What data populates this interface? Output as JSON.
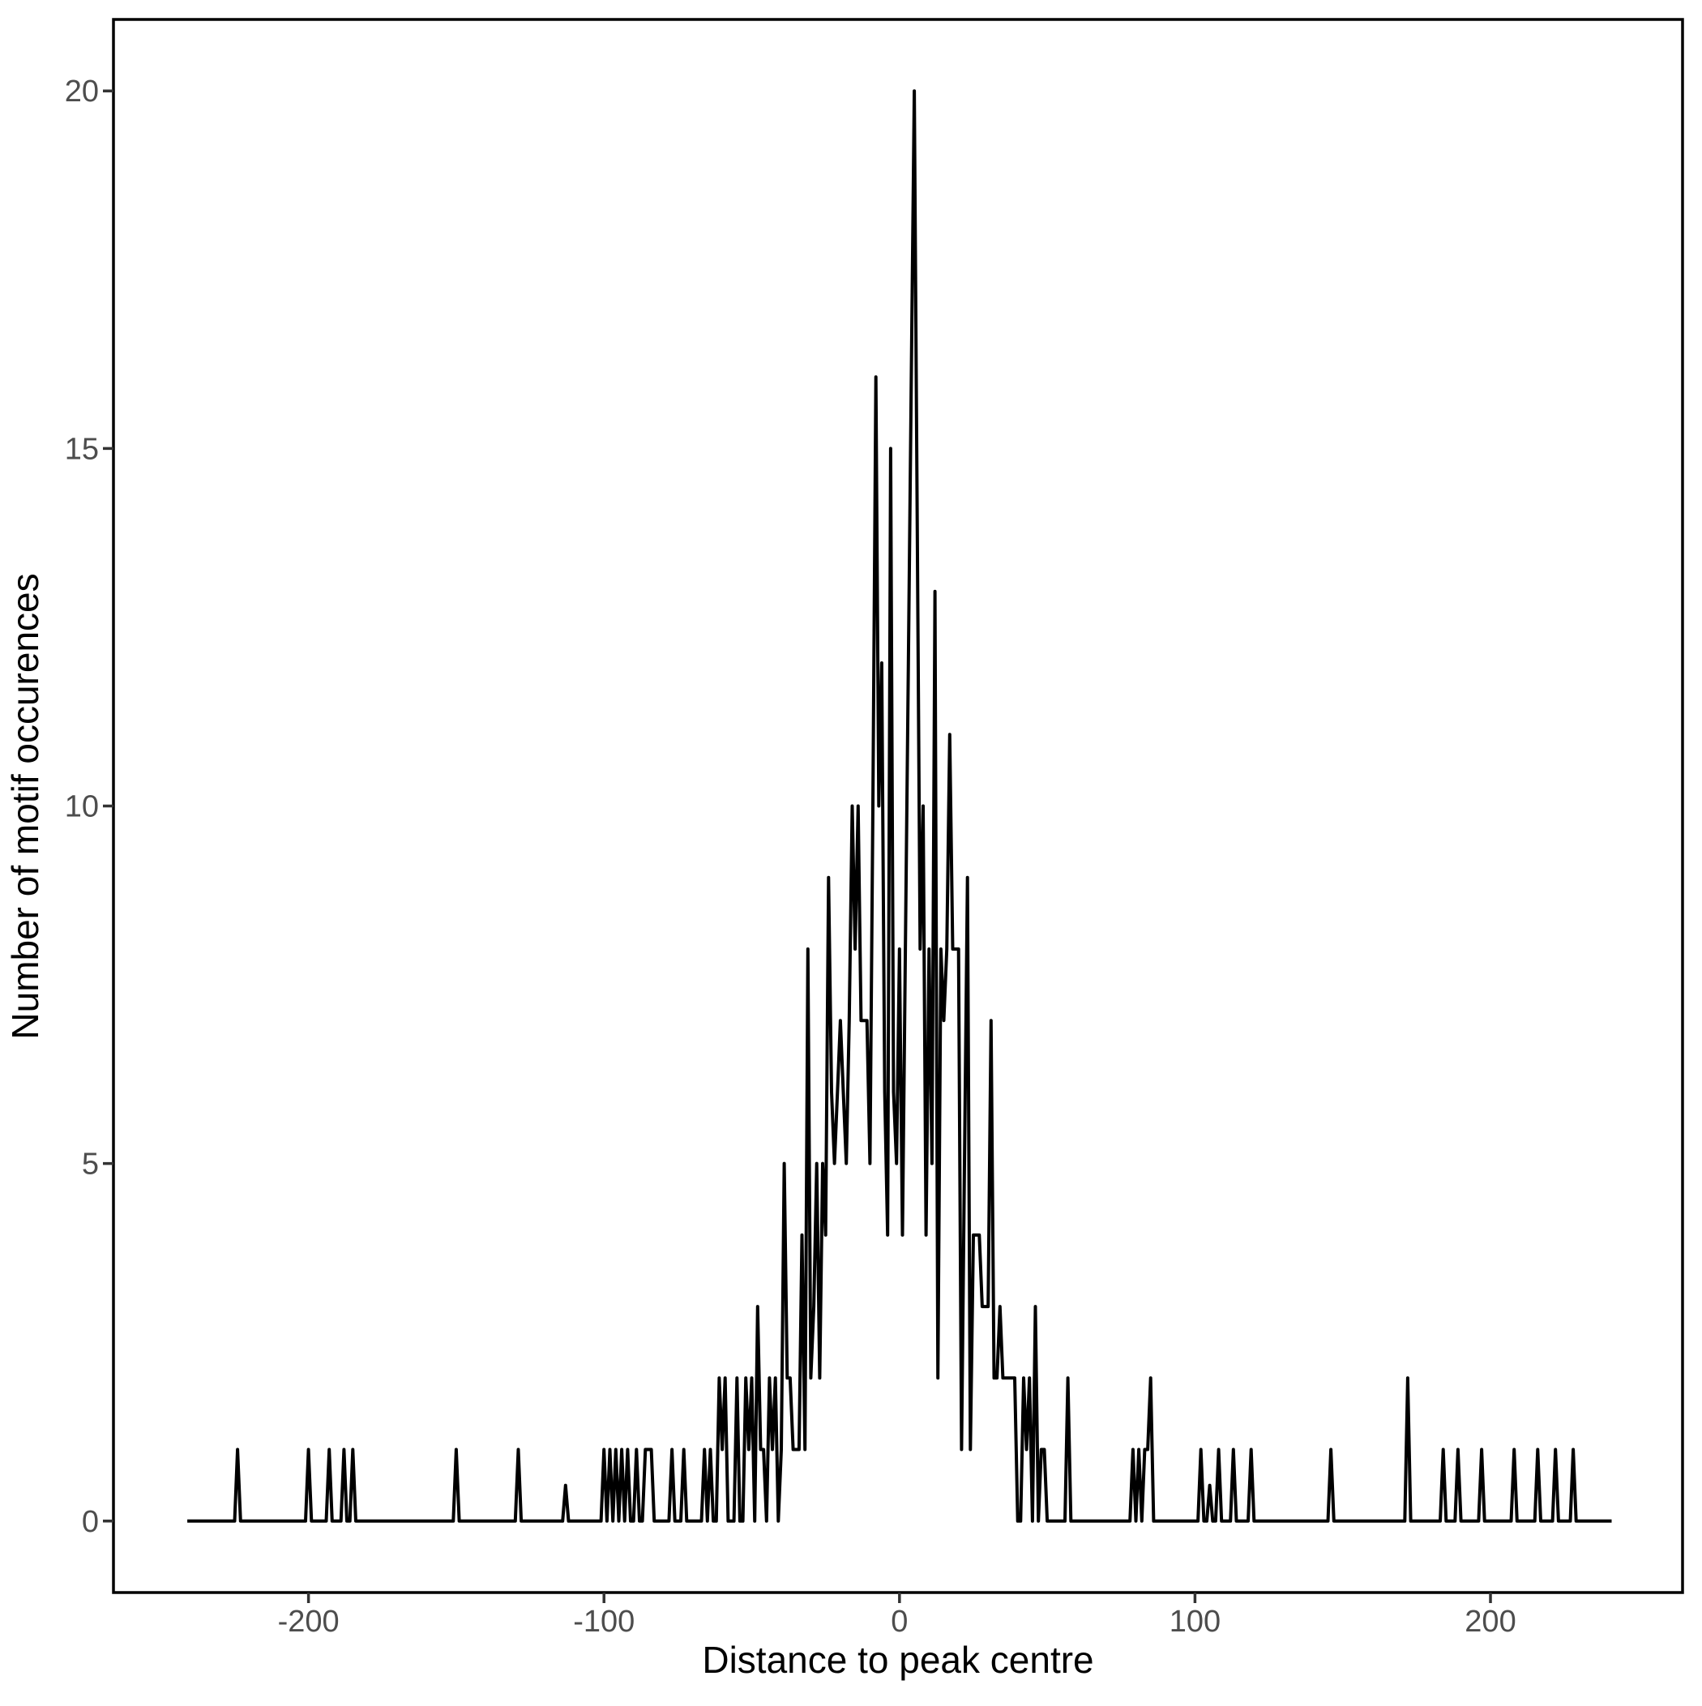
{
  "chart_data": {
    "type": "line",
    "title": "",
    "xlabel": "Distance to peak centre",
    "ylabel": "Number of motif occurences",
    "legend": "none",
    "grid": false,
    "line_color": "#000000",
    "axis_text_color": "#4d4d4d",
    "panel_border_color": "#000000",
    "background_color": "#ffffff",
    "xlim": [
      -266,
      265
    ],
    "ylim": [
      -1,
      21
    ],
    "x_ticks": [
      {
        "value": -200,
        "label": "-200"
      },
      {
        "value": -100,
        "label": "-100"
      },
      {
        "value": 0,
        "label": "0"
      },
      {
        "value": 100,
        "label": "100"
      },
      {
        "value": 200,
        "label": "200"
      }
    ],
    "y_ticks": [
      {
        "value": 0,
        "label": "0"
      },
      {
        "value": 5,
        "label": "5"
      },
      {
        "value": 10,
        "label": "10"
      },
      {
        "value": 15,
        "label": "15"
      },
      {
        "value": 20,
        "label": "20"
      }
    ],
    "points": [
      [
        -241,
        0
      ],
      [
        -225,
        0
      ],
      [
        -224,
        1
      ],
      [
        -223,
        0
      ],
      [
        -201,
        0
      ],
      [
        -200,
        1
      ],
      [
        -199,
        0
      ],
      [
        -194,
        0
      ],
      [
        -193,
        1
      ],
      [
        -192,
        0
      ],
      [
        -189,
        0
      ],
      [
        -188,
        1
      ],
      [
        -187,
        0
      ],
      [
        -186,
        0
      ],
      [
        -185,
        1
      ],
      [
        -184,
        0
      ],
      [
        -151,
        0
      ],
      [
        -150,
        1
      ],
      [
        -149,
        0
      ],
      [
        -130,
        0
      ],
      [
        -129,
        1
      ],
      [
        -128,
        0
      ],
      [
        -114,
        0
      ],
      [
        -113,
        0.5
      ],
      [
        -112,
        0
      ],
      [
        -101,
        0
      ],
      [
        -100,
        1
      ],
      [
        -99,
        0
      ],
      [
        -98,
        1
      ],
      [
        -97,
        0
      ],
      [
        -96,
        1
      ],
      [
        -95,
        0
      ],
      [
        -94,
        1
      ],
      [
        -93,
        0
      ],
      [
        -92,
        1
      ],
      [
        -91,
        0
      ],
      [
        -90,
        0
      ],
      [
        -89,
        1
      ],
      [
        -88,
        0
      ],
      [
        -87,
        0
      ],
      [
        -86,
        1
      ],
      [
        -85,
        1
      ],
      [
        -84,
        1
      ],
      [
        -83,
        0
      ],
      [
        -78,
        0
      ],
      [
        -77,
        1
      ],
      [
        -76,
        0
      ],
      [
        -74,
        0
      ],
      [
        -73,
        1
      ],
      [
        -72,
        0
      ],
      [
        -67,
        0
      ],
      [
        -66,
        1
      ],
      [
        -65,
        0
      ],
      [
        -64,
        1
      ],
      [
        -63,
        0
      ],
      [
        -62,
        0
      ],
      [
        -61,
        2
      ],
      [
        -60,
        1
      ],
      [
        -59,
        2
      ],
      [
        -58,
        0
      ],
      [
        -56,
        0
      ],
      [
        -55,
        2
      ],
      [
        -54,
        0
      ],
      [
        -53,
        0
      ],
      [
        -52,
        2
      ],
      [
        -51,
        1
      ],
      [
        -50,
        2
      ],
      [
        -49,
        0
      ],
      [
        -48,
        3
      ],
      [
        -47,
        1
      ],
      [
        -46,
        1
      ],
      [
        -45,
        0
      ],
      [
        -44,
        2
      ],
      [
        -43,
        1
      ],
      [
        -42,
        2
      ],
      [
        -41,
        0
      ],
      [
        -40,
        1
      ],
      [
        -39,
        5
      ],
      [
        -38,
        2
      ],
      [
        -37,
        2
      ],
      [
        -36,
        1
      ],
      [
        -35,
        1
      ],
      [
        -34,
        1
      ],
      [
        -33,
        4
      ],
      [
        -32,
        1
      ],
      [
        -31,
        8
      ],
      [
        -30,
        2
      ],
      [
        -29,
        3
      ],
      [
        -28,
        5
      ],
      [
        -27,
        2
      ],
      [
        -26,
        5
      ],
      [
        -25,
        4
      ],
      [
        -24,
        9
      ],
      [
        -23,
        6
      ],
      [
        -22,
        5
      ],
      [
        -21,
        6
      ],
      [
        -20,
        7
      ],
      [
        -19,
        6
      ],
      [
        -18,
        5
      ],
      [
        -17,
        7
      ],
      [
        -16,
        10
      ],
      [
        -15,
        8
      ],
      [
        -14,
        10
      ],
      [
        -13,
        7
      ],
      [
        -12,
        7
      ],
      [
        -11,
        7
      ],
      [
        -10,
        5
      ],
      [
        -9,
        10
      ],
      [
        -8,
        16
      ],
      [
        -7,
        10
      ],
      [
        -6,
        12
      ],
      [
        -5,
        6
      ],
      [
        -4,
        4
      ],
      [
        -3,
        15
      ],
      [
        -2,
        6
      ],
      [
        -1,
        5
      ],
      [
        0,
        8
      ],
      [
        1,
        4
      ],
      [
        2,
        8
      ],
      [
        3,
        12
      ],
      [
        4,
        16
      ],
      [
        5,
        20
      ],
      [
        6,
        14
      ],
      [
        7,
        8
      ],
      [
        8,
        10
      ],
      [
        9,
        4
      ],
      [
        10,
        8
      ],
      [
        11,
        5
      ],
      [
        12,
        13
      ],
      [
        13,
        2
      ],
      [
        14,
        8
      ],
      [
        15,
        7
      ],
      [
        16,
        8
      ],
      [
        17,
        11
      ],
      [
        18,
        8
      ],
      [
        19,
        8
      ],
      [
        20,
        8
      ],
      [
        21,
        1
      ],
      [
        22,
        5
      ],
      [
        23,
        9
      ],
      [
        24,
        1
      ],
      [
        25,
        4
      ],
      [
        26,
        4
      ],
      [
        27,
        4
      ],
      [
        28,
        3
      ],
      [
        29,
        3
      ],
      [
        30,
        3
      ],
      [
        31,
        7
      ],
      [
        32,
        2
      ],
      [
        33,
        2
      ],
      [
        34,
        3
      ],
      [
        35,
        2
      ],
      [
        36,
        2
      ],
      [
        37,
        2
      ],
      [
        38,
        2
      ],
      [
        39,
        2
      ],
      [
        40,
        0
      ],
      [
        41,
        0
      ],
      [
        42,
        2
      ],
      [
        43,
        1
      ],
      [
        44,
        2
      ],
      [
        45,
        0
      ],
      [
        46,
        3
      ],
      [
        47,
        0
      ],
      [
        48,
        1
      ],
      [
        49,
        1
      ],
      [
        50,
        0
      ],
      [
        56,
        0
      ],
      [
        57,
        2
      ],
      [
        58,
        0
      ],
      [
        78,
        0
      ],
      [
        79,
        1
      ],
      [
        80,
        0
      ],
      [
        81,
        1
      ],
      [
        82,
        0
      ],
      [
        83,
        1
      ],
      [
        84,
        1
      ],
      [
        85,
        2
      ],
      [
        86,
        0
      ],
      [
        101,
        0
      ],
      [
        102,
        1
      ],
      [
        103,
        0
      ],
      [
        104,
        0
      ],
      [
        105,
        0.5
      ],
      [
        106,
        0
      ],
      [
        107,
        0
      ],
      [
        108,
        1
      ],
      [
        109,
        0
      ],
      [
        112,
        0
      ],
      [
        113,
        1
      ],
      [
        114,
        0
      ],
      [
        118,
        0
      ],
      [
        119,
        1
      ],
      [
        120,
        0
      ],
      [
        145,
        0
      ],
      [
        146,
        1
      ],
      [
        147,
        0
      ],
      [
        171,
        0
      ],
      [
        172,
        2
      ],
      [
        173,
        0
      ],
      [
        183,
        0
      ],
      [
        184,
        1
      ],
      [
        185,
        0
      ],
      [
        188,
        0
      ],
      [
        189,
        1
      ],
      [
        190,
        0
      ],
      [
        196,
        0
      ],
      [
        197,
        1
      ],
      [
        198,
        0
      ],
      [
        207,
        0
      ],
      [
        208,
        1
      ],
      [
        209,
        0
      ],
      [
        215,
        0
      ],
      [
        216,
        1
      ],
      [
        217,
        0
      ],
      [
        221,
        0
      ],
      [
        222,
        1
      ],
      [
        223,
        0
      ],
      [
        227,
        0
      ],
      [
        228,
        1
      ],
      [
        229,
        0
      ],
      [
        241,
        0
      ]
    ]
  }
}
